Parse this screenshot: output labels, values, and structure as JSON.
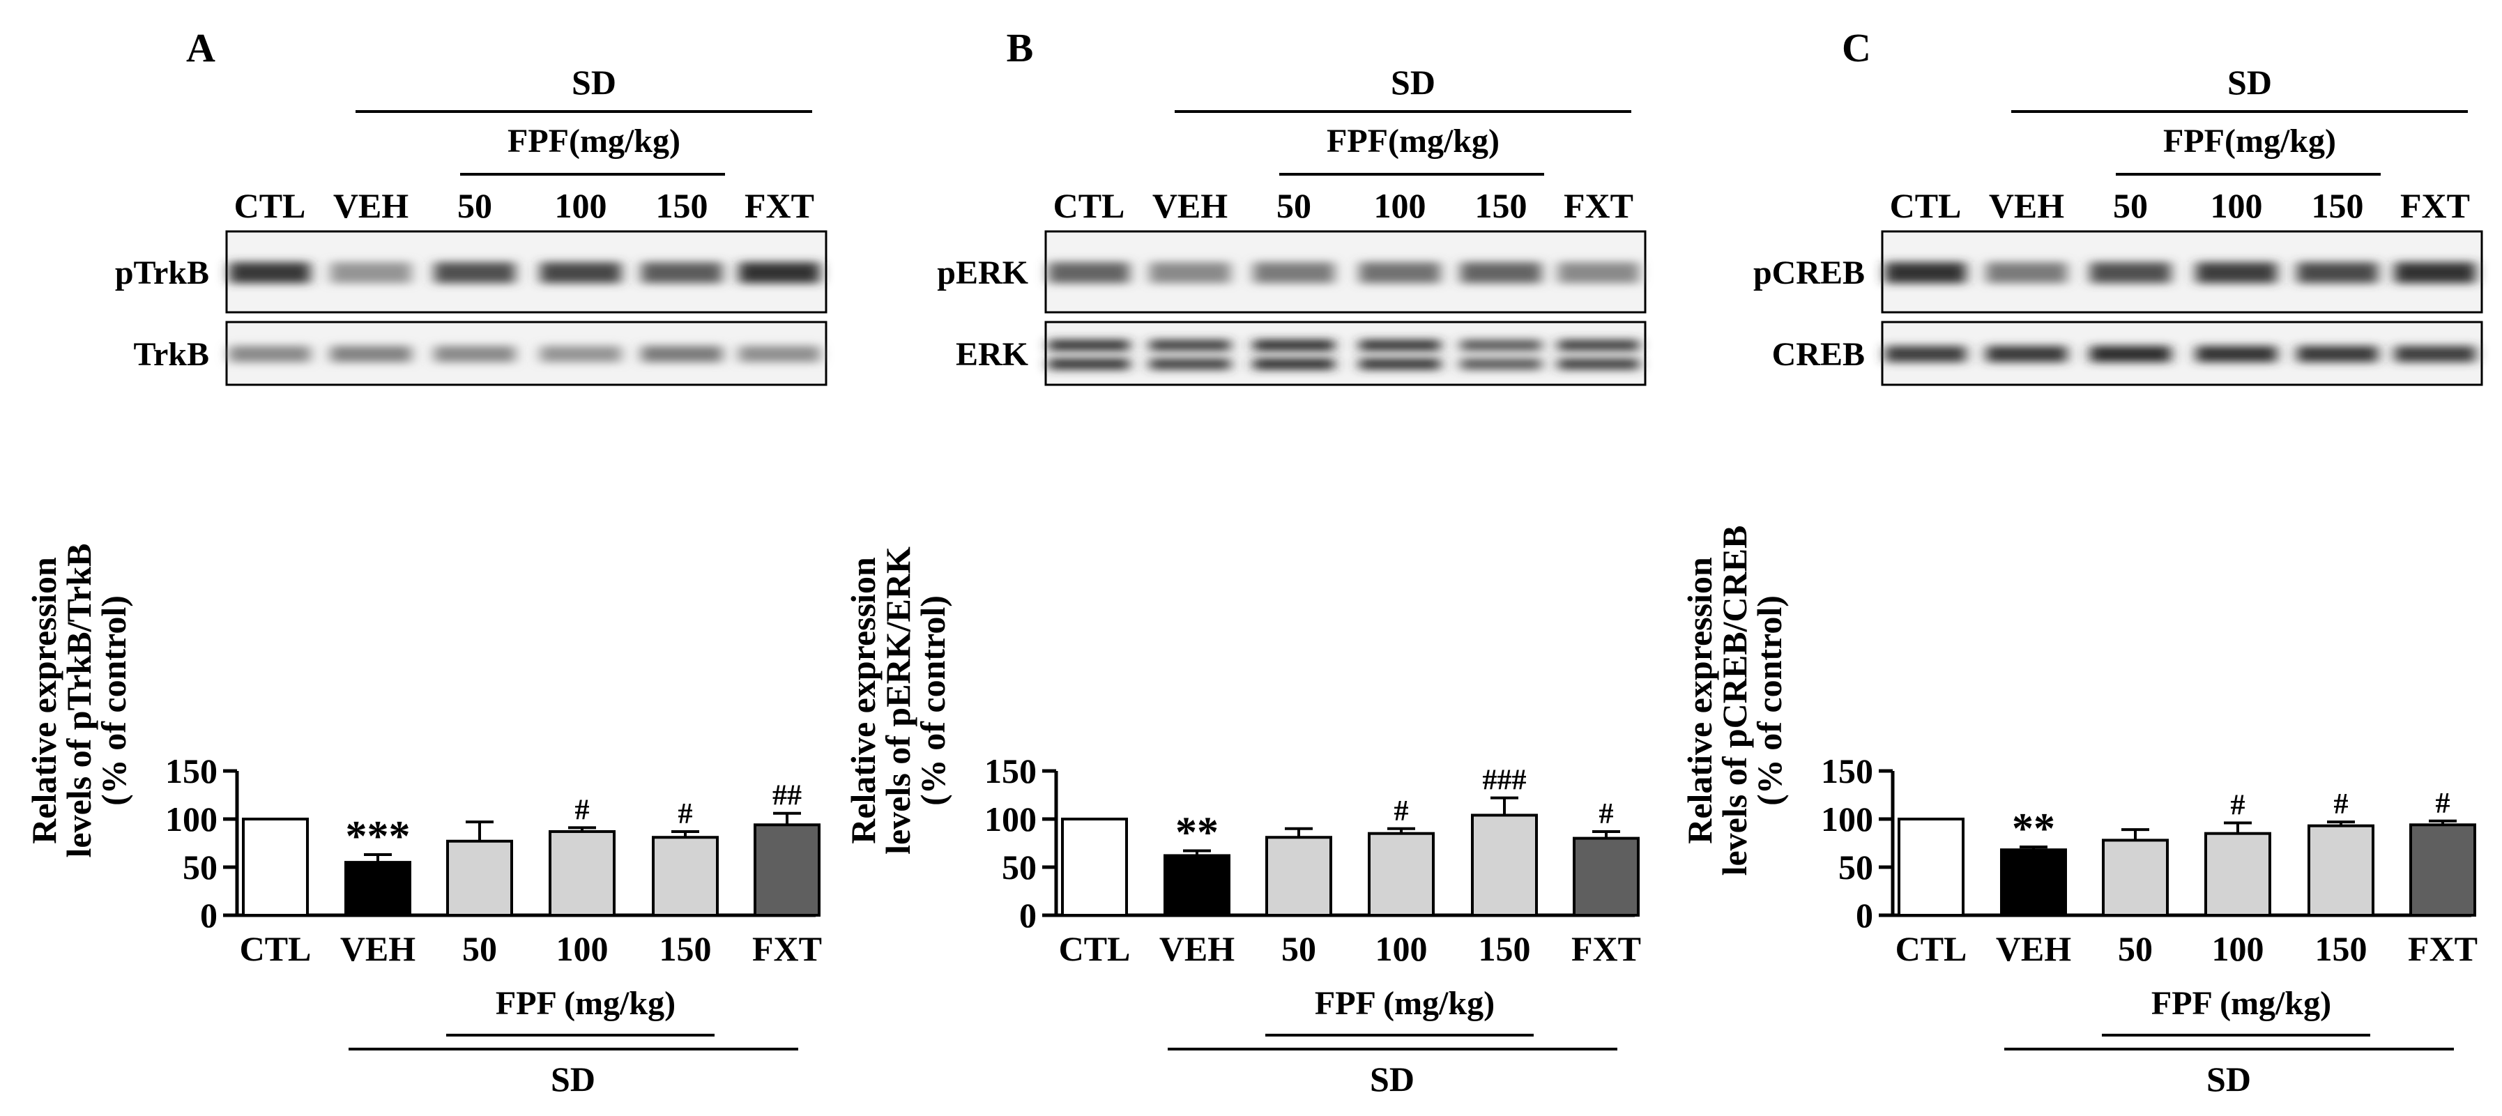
{
  "figure": {
    "group_label": "SD",
    "treatment_label_blot": "FPF(mg/kg)",
    "treatment_label_axis": "FPF (mg/kg)"
  },
  "chart_data": [
    {
      "panel": "A",
      "type": "bar",
      "categories": [
        "CTL",
        "VEH",
        "50",
        "100",
        "150",
        "FXT"
      ],
      "values": [
        100,
        55,
        77,
        87,
        81,
        94
      ],
      "errors": [
        0,
        8,
        20,
        4,
        6,
        12
      ],
      "significance": [
        "",
        "***",
        "",
        "#",
        "#",
        "##"
      ],
      "bar_colors": [
        "#ffffff",
        "#000000",
        "#d3d3d3",
        "#d3d3d3",
        "#d3d3d3",
        "#5f5f5f"
      ],
      "ylabel": [
        "Relative expression",
        "levels of pTrkB/TrkB",
        "(% of control)"
      ],
      "yticks": [
        0,
        50,
        100,
        150
      ],
      "ylim": [
        0,
        150
      ],
      "blots": [
        {
          "label": "pTrkB",
          "intensity": [
            0.92,
            0.5,
            0.82,
            0.86,
            0.76,
            0.95
          ]
        },
        {
          "label": "TrkB",
          "intensity": [
            0.55,
            0.58,
            0.55,
            0.5,
            0.62,
            0.52
          ]
        }
      ]
    },
    {
      "panel": "B",
      "type": "bar",
      "categories": [
        "CTL",
        "VEH",
        "50",
        "100",
        "150",
        "FXT"
      ],
      "values": [
        100,
        62,
        81,
        85,
        104,
        80
      ],
      "errors": [
        0,
        5,
        9,
        5,
        18,
        7
      ],
      "significance": [
        "",
        "**",
        "",
        "#",
        "###",
        "#"
      ],
      "bar_colors": [
        "#ffffff",
        "#000000",
        "#d3d3d3",
        "#d3d3d3",
        "#d3d3d3",
        "#5f5f5f"
      ],
      "ylabel": [
        "Relative expression",
        "levels of pERK/ERK",
        "(% of control)"
      ],
      "yticks": [
        0,
        50,
        100,
        150
      ],
      "ylim": [
        0,
        150
      ],
      "blots": [
        {
          "label": "pERK",
          "intensity": [
            0.72,
            0.55,
            0.62,
            0.66,
            0.72,
            0.55
          ]
        },
        {
          "label": "ERK",
          "intensity": [
            0.95,
            0.9,
            0.98,
            0.95,
            0.78,
            0.9
          ]
        }
      ]
    },
    {
      "panel": "C",
      "type": "bar",
      "categories": [
        "CTL",
        "VEH",
        "50",
        "100",
        "150",
        "FXT"
      ],
      "values": [
        100,
        68,
        78,
        85,
        93,
        94
      ],
      "errors": [
        0,
        3,
        11,
        11,
        4,
        4
      ],
      "significance": [
        "",
        "**",
        "",
        "#",
        "#",
        "#"
      ],
      "bar_colors": [
        "#ffffff",
        "#000000",
        "#d3d3d3",
        "#d3d3d3",
        "#d3d3d3",
        "#5f5f5f"
      ],
      "ylabel": [
        "Relative expression",
        "levels of pCREB/CREB",
        "(% of control)"
      ],
      "yticks": [
        0,
        50,
        100,
        150
      ],
      "ylim": [
        0,
        150
      ],
      "blots": [
        {
          "label": "pCREB",
          "intensity": [
            0.95,
            0.62,
            0.82,
            0.9,
            0.85,
            0.95
          ]
        },
        {
          "label": "CREB",
          "intensity": [
            0.9,
            0.92,
            0.98,
            0.95,
            0.92,
            0.9
          ]
        }
      ]
    }
  ]
}
